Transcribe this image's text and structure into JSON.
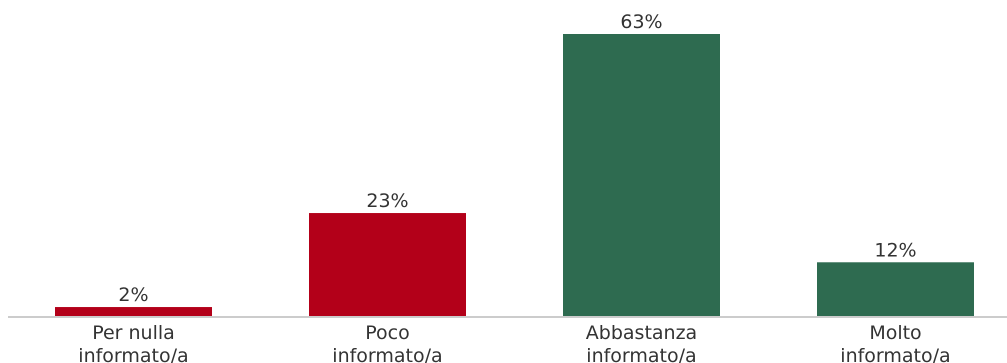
{
  "chart_data": {
    "type": "bar",
    "categories": [
      [
        "Per nulla",
        "informato/a"
      ],
      [
        "Poco",
        "informato/a"
      ],
      [
        "Abbastanza",
        "informato/a"
      ],
      [
        "Molto",
        "informato/a"
      ]
    ],
    "values": [
      2,
      23,
      63,
      12
    ],
    "value_labels": [
      "2%",
      "23%",
      "63%",
      "12%"
    ],
    "bar_colors": [
      "#b30019",
      "#b30019",
      "#2e6b50",
      "#2e6b50"
    ],
    "ylim": [
      0,
      63
    ],
    "grid": false,
    "legend": "none",
    "title": "",
    "xlabel": "",
    "ylabel": ""
  }
}
